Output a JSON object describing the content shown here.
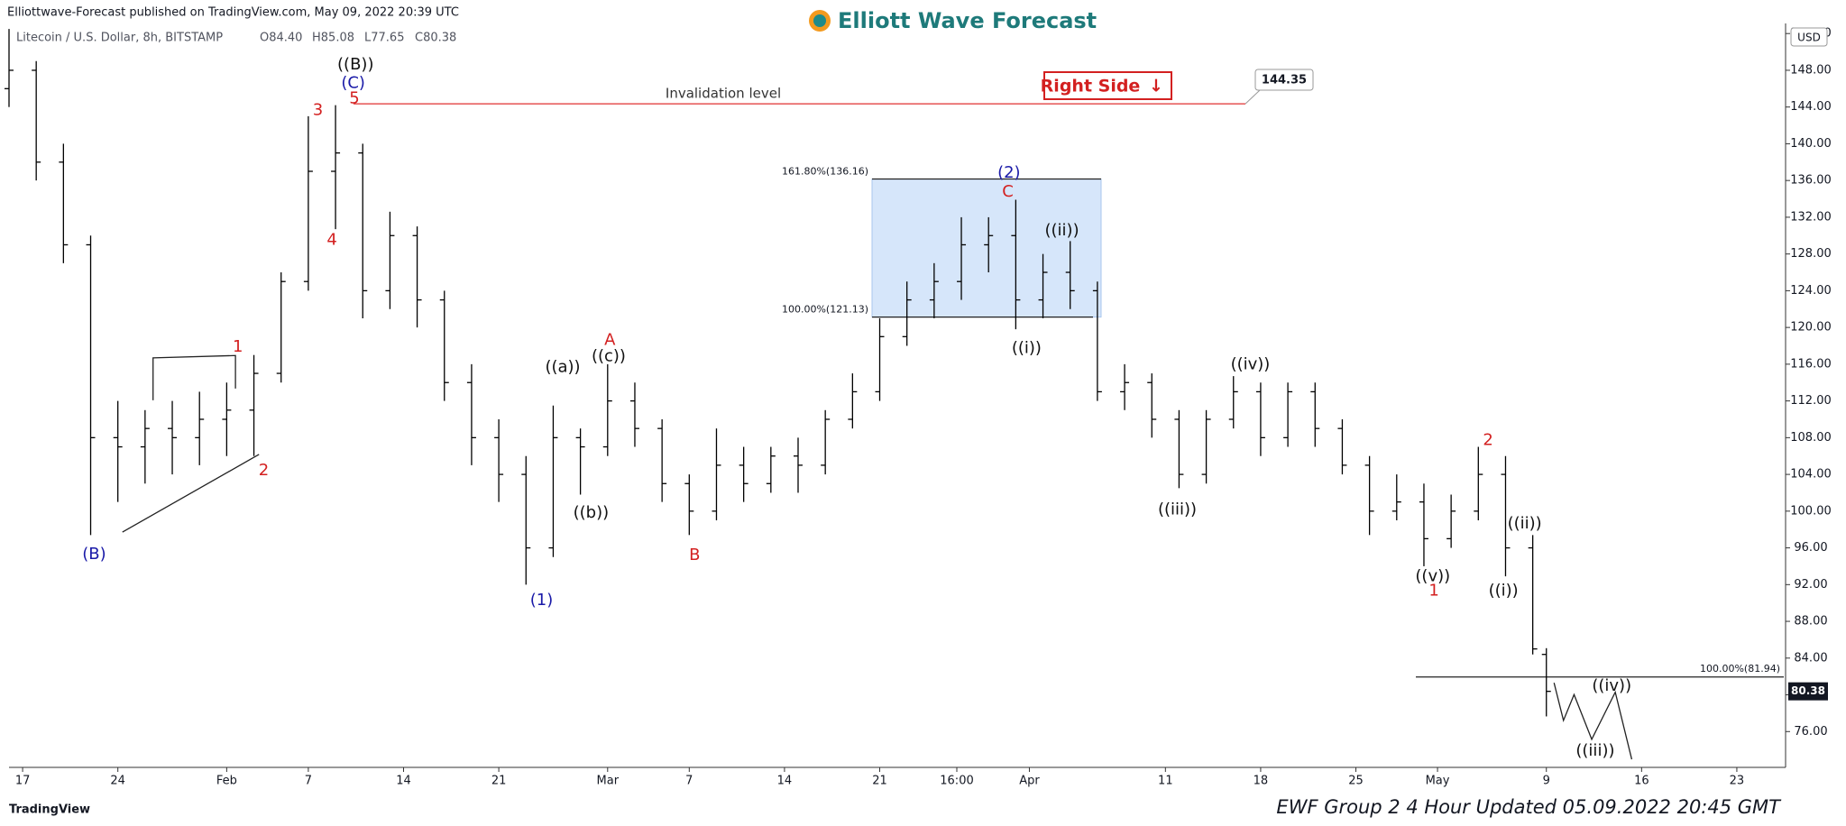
{
  "header": {
    "published": "Elliottwave-Forecast published on TradingView.com, May 09, 2022 20:39 UTC",
    "brand": "Elliott Wave Forecast",
    "symbol": "Litecoin / U.S. Dollar, 8h, BITSTAMP",
    "ohlc": [
      "O84.40",
      "H85.08",
      "L77.65",
      "C80.38"
    ],
    "platform": "TradingView"
  },
  "footer": "EWF Group 2 4 Hour Updated 05.09.2022 20:45 GMT",
  "chart_data": {
    "type": "ohlc",
    "color": "#000000",
    "currency": "USD",
    "x": [
      "01-16",
      "01-18",
      "01-20",
      "01-22",
      "01-24",
      "01-26",
      "01-28",
      "01-30",
      "02-01",
      "02-03",
      "02-05",
      "02-07",
      "02-09",
      "02-11",
      "02-13",
      "02-15",
      "02-17",
      "02-19",
      "02-21",
      "02-23",
      "02-25",
      "02-27",
      "03-01",
      "03-03",
      "03-05",
      "03-07",
      "03-09",
      "03-11",
      "03-13",
      "03-15",
      "03-17",
      "03-19",
      "03-21",
      "03-23",
      "03-25",
      "03-27",
      "03-29",
      "03-31",
      "04-02",
      "04-04",
      "04-06",
      "04-08",
      "04-10",
      "04-12",
      "04-14",
      "04-16",
      "04-18",
      "04-20",
      "04-22",
      "04-24",
      "04-26",
      "04-28",
      "04-30",
      "05-02",
      "05-04",
      "05-06",
      "05-08",
      "05-09"
    ],
    "open": [
      146,
      148,
      138,
      129,
      108,
      107,
      109,
      108,
      110,
      111,
      115,
      125,
      137,
      139,
      124,
      130,
      123,
      114,
      108,
      104,
      96,
      108,
      107,
      112,
      109,
      103,
      100,
      105,
      103,
      106,
      105,
      110,
      113,
      119,
      123,
      125,
      129,
      130,
      123,
      126,
      124,
      113,
      114,
      110,
      104,
      110,
      113,
      108,
      113,
      109,
      105,
      100,
      101,
      97,
      100,
      104,
      96,
      84.4
    ],
    "high": [
      152.5,
      149,
      140,
      130,
      112,
      111,
      112,
      113,
      114,
      117,
      126,
      143,
      144.2,
      140,
      132.6,
      131,
      124,
      116,
      110,
      106,
      111.5,
      109,
      116,
      114,
      110,
      104,
      109,
      107,
      107,
      108,
      111,
      115,
      121,
      125,
      127,
      132,
      132,
      133.9,
      128,
      129.4,
      125,
      116,
      115,
      111,
      111,
      114.7,
      114,
      114,
      114,
      110,
      106,
      104,
      103,
      101.8,
      107,
      106,
      97.4,
      85.08
    ],
    "low": [
      144,
      136,
      127,
      97.4,
      101,
      103,
      104,
      105,
      106,
      106,
      114,
      124,
      130.7,
      121,
      122,
      120,
      112,
      105,
      101,
      92,
      95,
      101.8,
      106,
      107,
      101,
      97.4,
      99,
      101,
      102,
      102,
      104,
      109,
      112,
      118,
      121,
      123,
      126,
      119.8,
      121,
      122,
      112,
      111,
      108,
      102.5,
      103,
      109,
      106,
      107,
      107,
      104,
      97.4,
      99,
      94,
      96,
      99,
      92.9,
      84.4,
      77.65
    ],
    "close": [
      148,
      138,
      129,
      108,
      107,
      109,
      108,
      110,
      111,
      115,
      125,
      137,
      139,
      124,
      130,
      123,
      114,
      108,
      104,
      96,
      108,
      107,
      112,
      109,
      103,
      100,
      105,
      103,
      106,
      105,
      110,
      113,
      119,
      123,
      125,
      129,
      130,
      123,
      126,
      124,
      113,
      114,
      110,
      104,
      110,
      113,
      108,
      113,
      109,
      105,
      100,
      101,
      97,
      100,
      104,
      96,
      85,
      80.38
    ],
    "xlim": [
      "01-16",
      "05-26 14:00"
    ],
    "xticks": [
      {
        "value": "01-17",
        "label": "17"
      },
      {
        "value": "01-24",
        "label": "24"
      },
      {
        "value": "02-01",
        "label": "Feb"
      },
      {
        "value": "02-07",
        "label": "7"
      },
      {
        "value": "02-14",
        "label": "14"
      },
      {
        "value": "02-21",
        "label": "21"
      },
      {
        "value": "03-01",
        "label": "Mar"
      },
      {
        "value": "03-07",
        "label": "7"
      },
      {
        "value": "03-14",
        "label": "14"
      },
      {
        "value": "03-21",
        "label": "21"
      },
      {
        "value": "03-26 16:00",
        "label": "16:00"
      },
      {
        "value": "04-01",
        "label": "Apr"
      },
      {
        "value": "04-11",
        "label": "11"
      },
      {
        "value": "04-18",
        "label": "18"
      },
      {
        "value": "04-25",
        "label": "25"
      },
      {
        "value": "05-01",
        "label": "May"
      },
      {
        "value": "05-09",
        "label": "9"
      },
      {
        "value": "05-16",
        "label": "16"
      },
      {
        "value": "05-23",
        "label": "23"
      }
    ],
    "ylim": [
      72.1,
      153.1
    ],
    "yticks": [
      {
        "value": 76,
        "label": "76.00"
      },
      {
        "value": 80,
        "label": "80.00"
      },
      {
        "value": 84,
        "label": "84.00"
      },
      {
        "value": 88,
        "label": "88.00"
      },
      {
        "value": 92,
        "label": "92.00"
      },
      {
        "value": 96,
        "label": "96.00"
      },
      {
        "value": 100,
        "label": "100.00"
      },
      {
        "value": 104,
        "label": "104.00"
      },
      {
        "value": 108,
        "label": "108.00"
      },
      {
        "value": 112,
        "label": "112.00"
      },
      {
        "value": 116,
        "label": "116.00"
      },
      {
        "value": 120,
        "label": "120.00"
      },
      {
        "value": 124,
        "label": "124.00"
      },
      {
        "value": 128,
        "label": "128.00"
      },
      {
        "value": 132,
        "label": "132.00"
      },
      {
        "value": 136,
        "label": "136.00"
      },
      {
        "value": 140,
        "label": "140.00"
      },
      {
        "value": 144,
        "label": "144.00"
      },
      {
        "value": 148,
        "label": "148.00"
      },
      {
        "value": 152,
        "label": "152.00"
      }
    ],
    "levels": [
      {
        "label": "Invalidation level",
        "value": 144.35
      },
      {
        "label": "161.80%(136.16)",
        "value": 136.16
      },
      {
        "label": "100.00%(121.13)",
        "value": 121.13
      },
      {
        "label": "100.00%(81.94)",
        "value": 81.94
      }
    ],
    "note": "Right Side",
    "note_arrow": "↓",
    "wave_labels": [
      "(B)",
      "1",
      "2",
      "3",
      "4",
      "((B))",
      "(C)",
      "5",
      "((a))",
      "((b))",
      "A",
      "((c))",
      "(1)",
      "B",
      "(2)",
      "C",
      "((ii))",
      "((i))",
      "((iii))",
      "((iv))",
      "((v))",
      "1",
      "2",
      "((ii))",
      "((i))",
      "((iv))",
      "((iii))"
    ]
  }
}
